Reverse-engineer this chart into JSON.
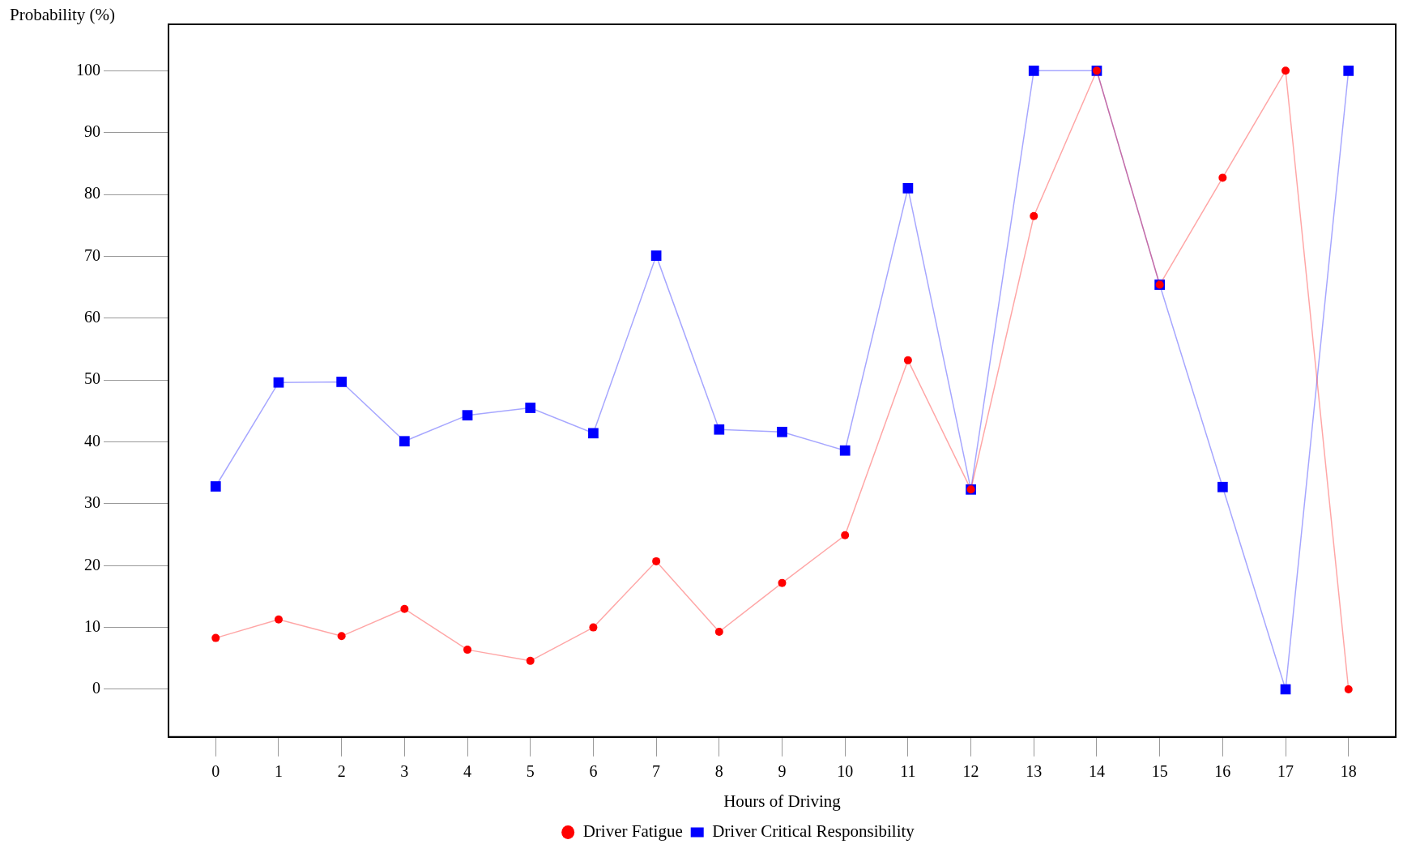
{
  "chart_data": {
    "type": "line",
    "xlabel": "Hours of Driving",
    "ylabel": "Probability (%)",
    "x": [
      0,
      1,
      2,
      3,
      4,
      5,
      6,
      7,
      8,
      9,
      10,
      11,
      12,
      13,
      14,
      15,
      16,
      17,
      18
    ],
    "xlim": [
      -0.75,
      18.75
    ],
    "xticks": [
      0,
      1,
      2,
      3,
      4,
      5,
      6,
      7,
      8,
      9,
      10,
      11,
      12,
      13,
      14,
      15,
      16,
      17,
      18
    ],
    "ylim": [
      -7.7,
      107.5
    ],
    "yticks": [
      0,
      10,
      20,
      30,
      40,
      50,
      60,
      70,
      80,
      90,
      100
    ],
    "grid": false,
    "legend": "bottom",
    "series": [
      {
        "name": "Driver Fatigue",
        "color": "#ff0000",
        "marker": "circle",
        "values": [
          8.3,
          11.3,
          8.6,
          13.0,
          6.4,
          4.6,
          10.0,
          20.7,
          9.3,
          17.2,
          24.9,
          53.2,
          32.3,
          76.5,
          100,
          65.4,
          82.7,
          100,
          0
        ]
      },
      {
        "name": "Driver Critical Responsibility",
        "color": "#0000ff",
        "marker": "square",
        "values": [
          32.8,
          49.6,
          49.7,
          40.1,
          44.3,
          45.5,
          41.4,
          70.1,
          42.0,
          41.6,
          38.6,
          81.0,
          32.3,
          100,
          100,
          65.4,
          32.7,
          0,
          100
        ]
      }
    ]
  }
}
